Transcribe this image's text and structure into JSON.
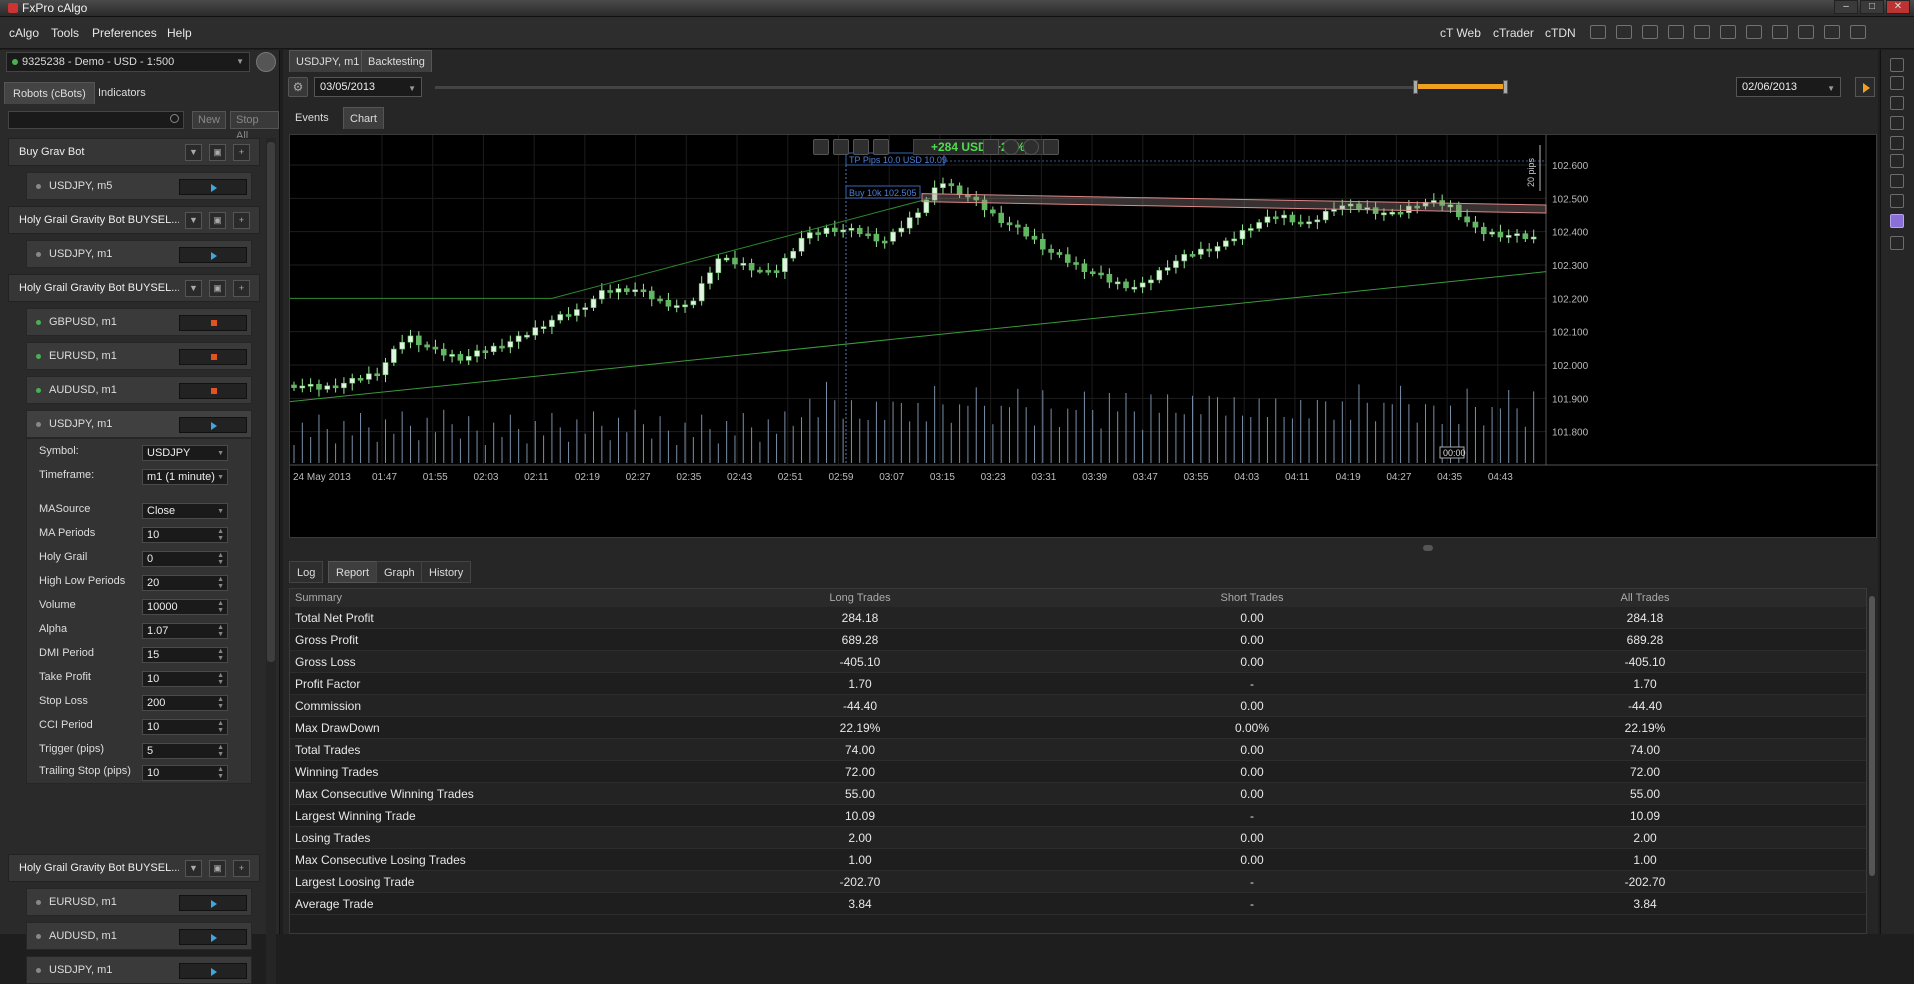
{
  "window": {
    "title": "FxPro cAlgo"
  },
  "menu": [
    "cAlgo",
    "Tools",
    "Preferences",
    "Help"
  ],
  "top_links": [
    "cT Web",
    "cTrader",
    "cTDN"
  ],
  "account": {
    "label": "9325238 - Demo - USD - 1:500"
  },
  "left_tabs": [
    "Robots (cBots)",
    "Indicators"
  ],
  "search": {
    "placeholder": ""
  },
  "buttons": {
    "new": "New",
    "stop_all": "Stop All"
  },
  "bots": [
    {
      "name": "Buy Grav Bot",
      "instances": [
        "USDJPY, m5"
      ]
    },
    {
      "name": "Holy Grail Gravity Bot BUYSEL...",
      "instances": [
        "USDJPY, m1"
      ]
    },
    {
      "name": "Holy Grail Gravity Bot BUYSEL...",
      "instances": [
        "GBPUSD, m1",
        "EURUSD, m1",
        "AUDUSD, m1",
        "USDJPY, m1"
      ]
    },
    {
      "name": "Holy Grail Gravity Bot BUYSEL...",
      "instances": [
        "EURUSD, m1",
        "AUDUSD, m1",
        "USDJPY, m1"
      ]
    }
  ],
  "params": [
    {
      "label": "Symbol:",
      "value": "USDJPY"
    },
    {
      "label": "Timeframe:",
      "value": "m1 (1 minute)"
    },
    {
      "label": "MASource",
      "value": "Close"
    },
    {
      "label": "MA Periods",
      "value": "10"
    },
    {
      "label": "Holy Grail",
      "value": "0"
    },
    {
      "label": "High Low Periods",
      "value": "20"
    },
    {
      "label": "Volume",
      "value": "10000"
    },
    {
      "label": "Alpha",
      "value": "1.07"
    },
    {
      "label": "DMI Period",
      "value": "15"
    },
    {
      "label": "Take Profit",
      "value": "10"
    },
    {
      "label": "Stop Loss",
      "value": "200"
    },
    {
      "label": "CCI Period",
      "value": "10"
    },
    {
      "label": "Trigger (pips)",
      "value": "5"
    },
    {
      "label": "Trailing Stop (pips)",
      "value": "10"
    }
  ],
  "center_tabs": [
    "USDJPY, m1",
    "Backtesting"
  ],
  "date_from": "03/05/2013",
  "date_to": "02/06/2013",
  "chart_tabs": [
    "Events",
    "Chart"
  ],
  "chart_overlay": {
    "pnl": "+284 USD (+28%)",
    "tp_label": "TP  Pips 10.0  USD 10.09",
    "buy_label": "Buy  10k  102.505",
    "pips_label": "20 pips"
  },
  "chart_data": {
    "type": "candlestick",
    "x_ticks": [
      "24 May 2013",
      "01:47",
      "01:55",
      "02:03",
      "02:11",
      "02:19",
      "02:27",
      "02:35",
      "02:43",
      "02:51",
      "02:59",
      "03:07",
      "03:15",
      "03:23",
      "03:31",
      "03:39",
      "03:47",
      "03:55",
      "04:03",
      "04:11",
      "04:19",
      "04:27",
      "04:35",
      "04:43"
    ],
    "y_ticks": [
      "102.600",
      "102.500",
      "102.400",
      "102.300",
      "102.200",
      "102.100",
      "102.000",
      "101.900",
      "101.800"
    ],
    "ylim": [
      101.73,
      102.66
    ],
    "cursor_label": "00:00",
    "price_path": [
      101.94,
      101.93,
      101.95,
      101.98,
      102.09,
      102.04,
      102.02,
      102.05,
      102.08,
      102.13,
      102.16,
      102.22,
      102.23,
      102.19,
      102.17,
      102.32,
      102.3,
      102.27,
      102.38,
      102.41,
      102.4,
      102.37,
      102.45,
      102.55,
      102.5,
      102.44,
      102.39,
      102.33,
      102.29,
      102.25,
      102.23,
      102.3,
      102.34,
      102.36,
      102.42,
      102.45,
      102.42,
      102.48,
      102.47,
      102.45,
      102.49,
      102.48,
      102.4,
      102.39,
      102.38
    ],
    "ma_slow": [
      101.89,
      102.28
    ],
    "channel": [
      102.52,
      102.48
    ]
  },
  "bottom_tabs": [
    "Log",
    "Report",
    "Graph",
    "History"
  ],
  "report": {
    "headers": [
      "Summary",
      "Long Trades",
      "Short Trades",
      "All Trades"
    ],
    "rows": [
      [
        "Total Net Profit",
        "284.18",
        "0.00",
        "284.18"
      ],
      [
        "Gross Profit",
        "689.28",
        "0.00",
        "689.28"
      ],
      [
        "Gross Loss",
        "-405.10",
        "0.00",
        "-405.10"
      ],
      [
        "Profit Factor",
        "1.70",
        "-",
        "1.70"
      ],
      [
        "Commission",
        "-44.40",
        "0.00",
        "-44.40"
      ],
      [
        "Max DrawDown",
        "22.19%",
        "0.00%",
        "22.19%"
      ],
      [
        "Total Trades",
        "74.00",
        "0.00",
        "74.00"
      ],
      [
        "Winning Trades",
        "72.00",
        "0.00",
        "72.00"
      ],
      [
        "Max Consecutive Winning Trades",
        "55.00",
        "0.00",
        "55.00"
      ],
      [
        "Largest Winning Trade",
        "10.09",
        "-",
        "10.09"
      ],
      [
        "Losing Trades",
        "2.00",
        "0.00",
        "2.00"
      ],
      [
        "Max Consecutive Losing Trades",
        "1.00",
        "0.00",
        "1.00"
      ],
      [
        "Largest Loosing Trade",
        "-202.70",
        "-",
        "-202.70"
      ],
      [
        "Average Trade",
        "3.84",
        "-",
        "3.84"
      ]
    ]
  }
}
